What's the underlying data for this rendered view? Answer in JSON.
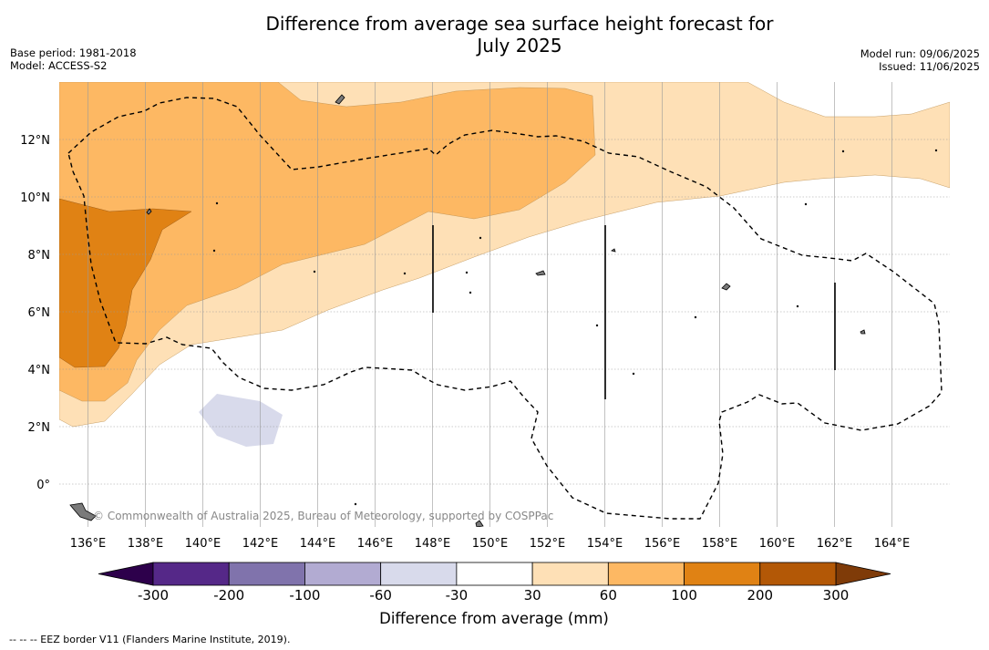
{
  "title": {
    "line1": "Difference from average sea surface height forecast for",
    "line2": "July 2025"
  },
  "meta": {
    "base_period": "Base period: 1981-2018",
    "model": "Model: ACCESS-S2",
    "model_run": "Model run: 09/06/2025",
    "issued": "Issued: 11/06/2025"
  },
  "map": {
    "lon_labels": [
      "136°E",
      "138°E",
      "140°E",
      "142°E",
      "144°E",
      "146°E",
      "148°E",
      "150°E",
      "152°E",
      "154°E",
      "156°E",
      "158°E",
      "160°E",
      "162°E",
      "164°E"
    ],
    "lat_labels": [
      "12°N",
      "10°N",
      "8°N",
      "6°N",
      "4°N",
      "2°N",
      "0°"
    ],
    "lon_range": [
      135,
      166
    ],
    "lat_range": [
      -1.5,
      14
    ],
    "copyright": "© Commonwealth of Australia 2025, Bureau of Meteorology, supported by COSPPac"
  },
  "colorbar": {
    "label": "Difference from average (mm)",
    "ticks": [
      "-300",
      "-200",
      "-100",
      "-60",
      "-30",
      "30",
      "60",
      "100",
      "200",
      "300"
    ],
    "colors": [
      "#552888",
      "#8073ac",
      "#b2abd2",
      "#d8daeb",
      "#ffffff",
      "#fee0b6",
      "#fdb863",
      "#e08214",
      "#b35806"
    ],
    "under_color": "#2d004b",
    "over_color": "#7f3b08"
  },
  "footer": "-- -- -- EEZ border V11 (Flanders Marine Institute, 2019)."
}
